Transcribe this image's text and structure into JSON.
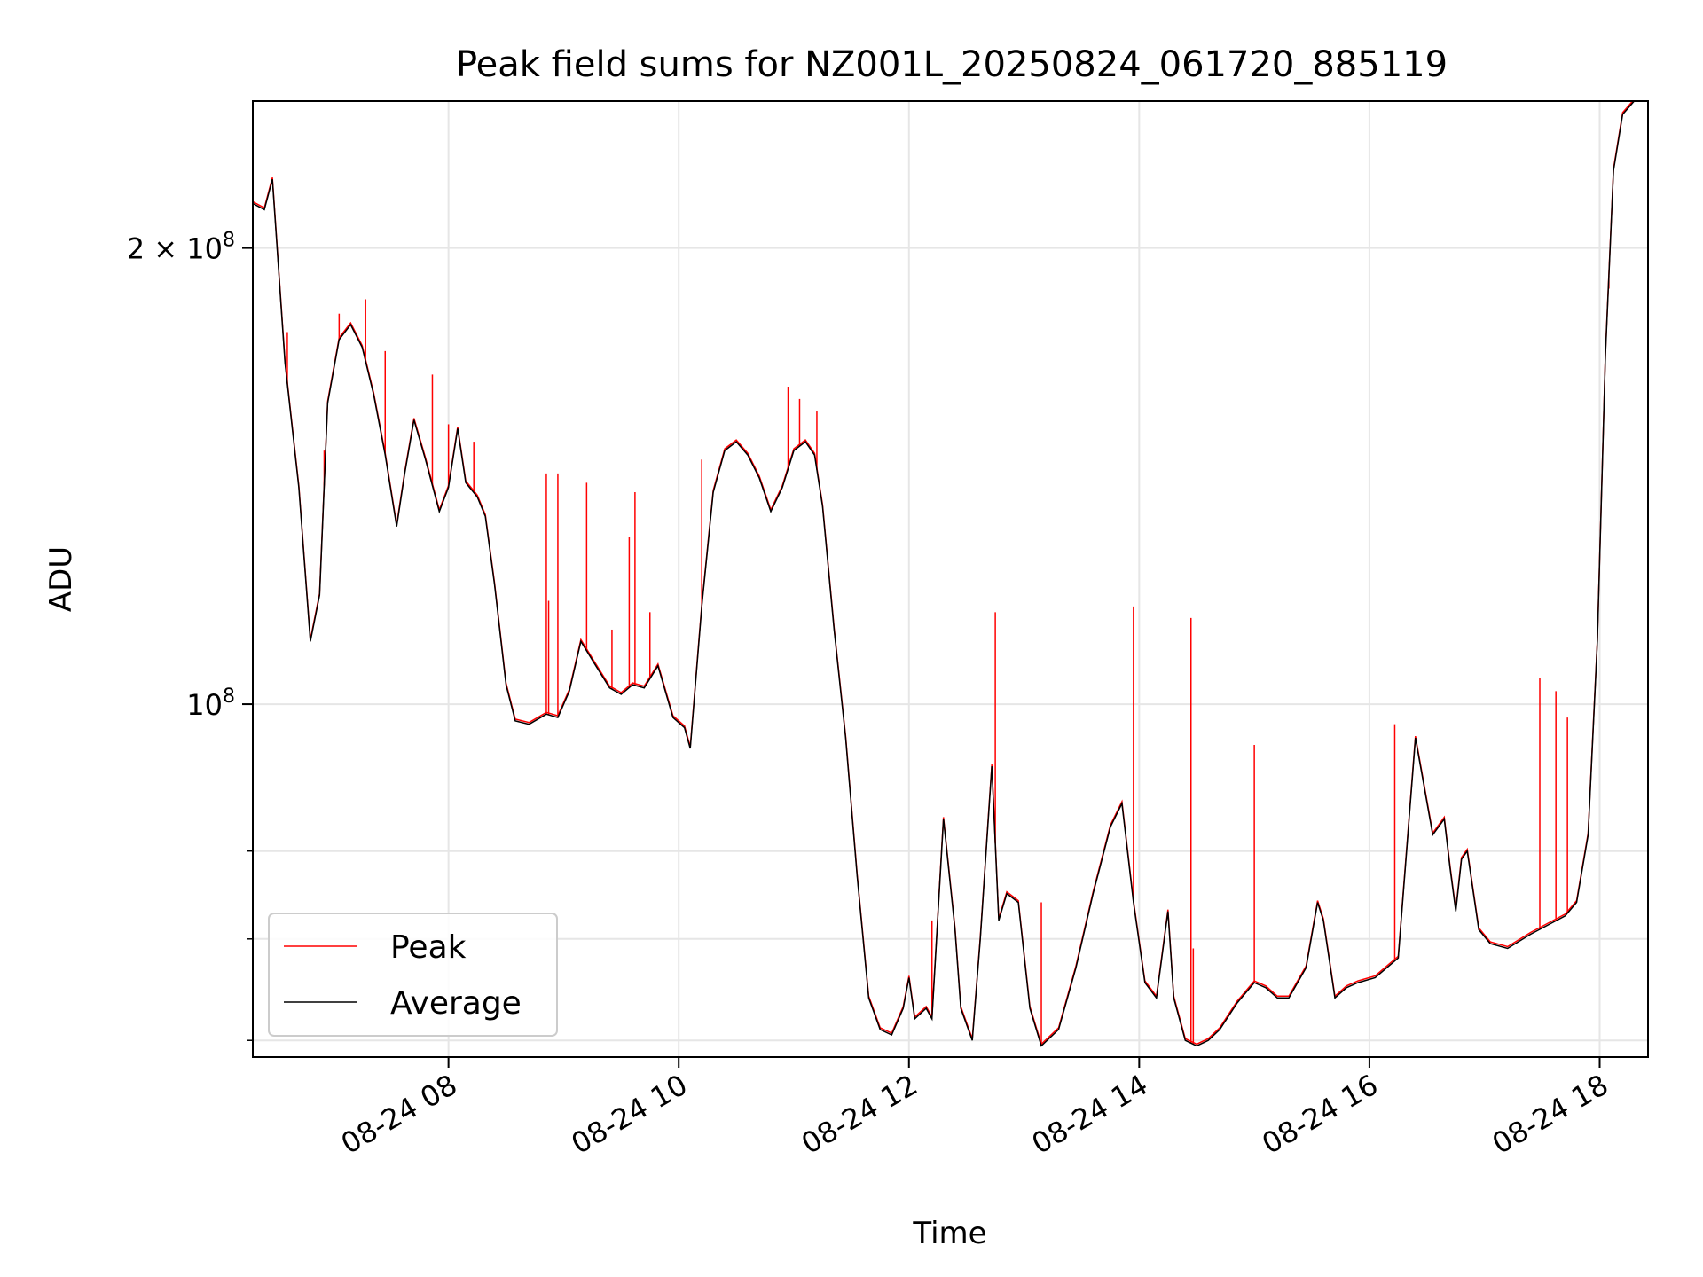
{
  "chart_data": {
    "type": "line",
    "title": "Peak field sums for NZ001L_20250824_061720_885119",
    "xlabel": "Time",
    "ylabel": "ADU",
    "x_ticks": [
      "08-24 08",
      "08-24 10",
      "08-24 12",
      "08-24 14",
      "08-24 16",
      "08-24 18"
    ],
    "x_tick_hours": [
      8,
      10,
      12,
      14,
      16,
      18
    ],
    "xlim_hours": [
      6.3,
      18.42
    ],
    "y_scale": "log",
    "ylim": [
      58500000,
      250000000
    ],
    "y_major_ticks": [
      {
        "value": 100000000,
        "base": "10",
        "exp": "8",
        "coef": ""
      },
      {
        "value": 200000000,
        "base": "10",
        "exp": "8",
        "coef": "2 × "
      }
    ],
    "y_minor_ticks": [
      60000000,
      70000000,
      80000000
    ],
    "grid": true,
    "legend_position": "lower-left",
    "colors": {
      "peak": "#ff0000",
      "average": "#000000"
    },
    "series": [
      {
        "name": "Average",
        "x_hours": [
          6.3,
          6.4,
          6.47,
          6.58,
          6.7,
          6.8,
          6.88,
          6.95,
          7.05,
          7.15,
          7.25,
          7.35,
          7.45,
          7.55,
          7.62,
          7.7,
          7.8,
          7.92,
          8.0,
          8.08,
          8.15,
          8.25,
          8.32,
          8.4,
          8.5,
          8.58,
          8.7,
          8.85,
          8.95,
          9.05,
          9.15,
          9.28,
          9.4,
          9.5,
          9.6,
          9.7,
          9.82,
          9.95,
          10.05,
          10.1,
          10.2,
          10.3,
          10.4,
          10.5,
          10.6,
          10.7,
          10.8,
          10.9,
          11.0,
          11.1,
          11.18,
          11.25,
          11.35,
          11.45,
          11.55,
          11.65,
          11.75,
          11.85,
          11.95,
          12.0,
          12.05,
          12.15,
          12.2,
          12.3,
          12.4,
          12.45,
          12.55,
          12.62,
          12.72,
          12.78,
          12.85,
          12.95,
          13.05,
          13.15,
          13.3,
          13.45,
          13.6,
          13.75,
          13.85,
          13.95,
          14.05,
          14.15,
          14.25,
          14.3,
          14.4,
          14.5,
          14.6,
          14.7,
          14.85,
          15.0,
          15.1,
          15.2,
          15.3,
          15.45,
          15.55,
          15.6,
          15.7,
          15.8,
          15.9,
          16.05,
          16.25,
          16.4,
          16.55,
          16.65,
          16.7,
          16.75,
          16.8,
          16.85,
          16.95,
          17.05,
          17.2,
          17.4,
          17.55,
          17.7,
          17.8,
          17.9,
          17.98,
          18.05,
          18.12,
          18.2,
          18.3,
          18.42
        ],
        "values": [
          214000000,
          212000000,
          222000000,
          168000000,
          139000000,
          110000000,
          118000000,
          158000000,
          174000000,
          178000000,
          172000000,
          160000000,
          146000000,
          131000000,
          142000000,
          154000000,
          145000000,
          134000000,
          139000000,
          152000000,
          140000000,
          137000000,
          133000000,
          120000000,
          103000000,
          97500000,
          97000000,
          98500000,
          98000000,
          102000000,
          110000000,
          106000000,
          102500000,
          101500000,
          103000000,
          102500000,
          106000000,
          98000000,
          96500000,
          93500000,
          116000000,
          138000000,
          147000000,
          149000000,
          146000000,
          141000000,
          134000000,
          139000000,
          147000000,
          149000000,
          146000000,
          135000000,
          112000000,
          95000000,
          77000000,
          64000000,
          61000000,
          60500000,
          63000000,
          66000000,
          62000000,
          63000000,
          62000000,
          84000000,
          71000000,
          63000000,
          60000000,
          70000000,
          91000000,
          72000000,
          75000000,
          74000000,
          63000000,
          59500000,
          61000000,
          67000000,
          75000000,
          83000000,
          86000000,
          74000000,
          65500000,
          64000000,
          73000000,
          64000000,
          60000000,
          59500000,
          60000000,
          61000000,
          63500000,
          65500000,
          65000000,
          64000000,
          64000000,
          67000000,
          74000000,
          72000000,
          64000000,
          65000000,
          65500000,
          66000000,
          68000000,
          95000000,
          82000000,
          84000000,
          78000000,
          73000000,
          79000000,
          80000000,
          71000000,
          69500000,
          69000000,
          70500000,
          71500000,
          72500000,
          74000000,
          82000000,
          110000000,
          170000000,
          225000000,
          245000000,
          250000000,
          250000000
        ]
      },
      {
        "name": "Peak",
        "spikes": [
          {
            "x_hour": 6.6,
            "value": 176000000
          },
          {
            "x_hour": 6.92,
            "value": 147000000
          },
          {
            "x_hour": 7.05,
            "value": 181000000
          },
          {
            "x_hour": 7.28,
            "value": 185000000
          },
          {
            "x_hour": 7.45,
            "value": 171000000
          },
          {
            "x_hour": 7.86,
            "value": 165000000
          },
          {
            "x_hour": 8.0,
            "value": 153000000
          },
          {
            "x_hour": 8.22,
            "value": 149000000
          },
          {
            "x_hour": 8.85,
            "value": 142000000
          },
          {
            "x_hour": 8.87,
            "value": 117000000
          },
          {
            "x_hour": 8.95,
            "value": 142000000
          },
          {
            "x_hour": 9.2,
            "value": 140000000
          },
          {
            "x_hour": 9.42,
            "value": 112000000
          },
          {
            "x_hour": 9.57,
            "value": 129000000
          },
          {
            "x_hour": 9.62,
            "value": 138000000
          },
          {
            "x_hour": 9.75,
            "value": 115000000
          },
          {
            "x_hour": 10.2,
            "value": 145000000
          },
          {
            "x_hour": 10.95,
            "value": 162000000
          },
          {
            "x_hour": 11.05,
            "value": 159000000
          },
          {
            "x_hour": 11.2,
            "value": 156000000
          },
          {
            "x_hour": 12.2,
            "value": 72000000
          },
          {
            "x_hour": 12.75,
            "value": 115000000
          },
          {
            "x_hour": 13.15,
            "value": 74000000
          },
          {
            "x_hour": 13.95,
            "value": 116000000
          },
          {
            "x_hour": 14.45,
            "value": 114000000
          },
          {
            "x_hour": 14.47,
            "value": 69000000
          },
          {
            "x_hour": 15.0,
            "value": 94000000
          },
          {
            "x_hour": 16.22,
            "value": 97000000
          },
          {
            "x_hour": 17.48,
            "value": 104000000
          },
          {
            "x_hour": 17.62,
            "value": 102000000
          },
          {
            "x_hour": 17.72,
            "value": 98000000
          },
          {
            "x_hour": 18.08,
            "value": 188000000
          }
        ]
      }
    ]
  }
}
